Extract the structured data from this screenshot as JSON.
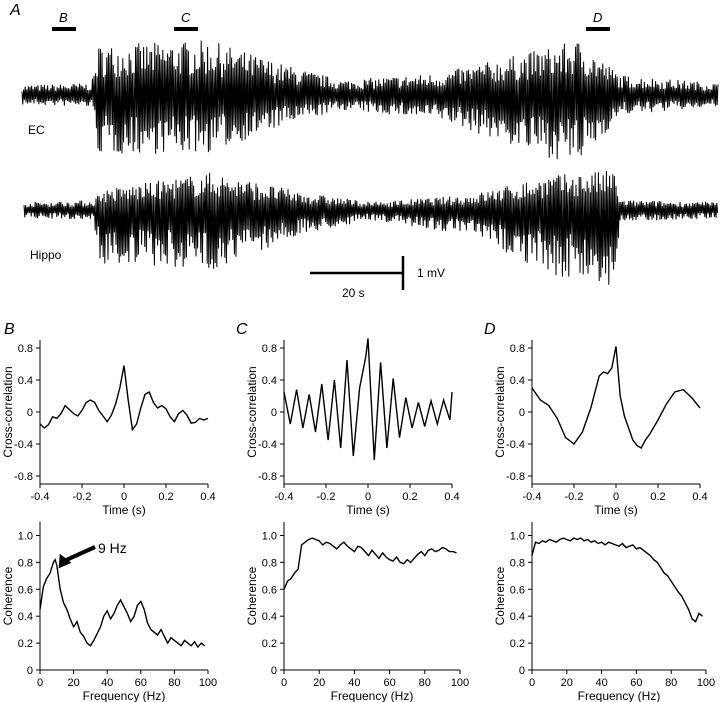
{
  "panel_labels": {
    "a": "A",
    "b": "B",
    "c": "C",
    "d": "D"
  },
  "traces": {
    "epoch_markers": [
      "B",
      "C",
      "D"
    ],
    "channels": [
      "EC",
      "Hippo"
    ],
    "scale_bar": {
      "time_label": "20 s",
      "amplitude_label": "1 mV"
    }
  },
  "colors": {
    "ink": "#000000",
    "background": "#ffffff"
  },
  "chart_data": [
    {
      "type": "line",
      "panel": "B",
      "role": "cross-correlation",
      "xlabel": "Time (s)",
      "ylabel": "Cross-correlation",
      "xlim": [
        -0.4,
        0.4
      ],
      "ylim": [
        -0.9,
        0.9
      ],
      "xticks": [
        "-0.4",
        "-0.2",
        "0",
        "0.2",
        "0.4"
      ],
      "yticks": [
        "-0.8",
        "-0.4",
        "0",
        "0.4",
        "0.8"
      ],
      "x": [
        -0.4,
        -0.38,
        -0.36,
        -0.34,
        -0.32,
        -0.3,
        -0.28,
        -0.26,
        -0.24,
        -0.22,
        -0.2,
        -0.18,
        -0.16,
        -0.14,
        -0.12,
        -0.1,
        -0.08,
        -0.06,
        -0.04,
        -0.02,
        0,
        0.02,
        0.04,
        0.06,
        0.08,
        0.1,
        0.12,
        0.14,
        0.16,
        0.18,
        0.2,
        0.22,
        0.24,
        0.26,
        0.28,
        0.3,
        0.32,
        0.34,
        0.36,
        0.38,
        0.4
      ],
      "y": [
        -0.15,
        -0.2,
        -0.16,
        -0.06,
        -0.08,
        -0.02,
        0.08,
        0.03,
        -0.02,
        -0.05,
        0.02,
        0.12,
        0.15,
        0.12,
        0.02,
        -0.05,
        -0.12,
        -0.04,
        0.1,
        0.3,
        0.58,
        0.15,
        -0.22,
        -0.15,
        0.05,
        0.22,
        0.25,
        0.12,
        0.05,
        0.08,
        0.04,
        -0.06,
        -0.12,
        -0.02,
        0.02,
        -0.04,
        -0.14,
        -0.13,
        -0.08,
        -0.1,
        -0.08
      ]
    },
    {
      "type": "line",
      "panel": "C",
      "role": "cross-correlation",
      "xlabel": "Time (s)",
      "ylabel": "Cross-correlation",
      "xlim": [
        -0.4,
        0.4
      ],
      "ylim": [
        -0.9,
        0.9
      ],
      "xticks": [
        "-0.4",
        "-0.2",
        "0",
        "0.2",
        "0.4"
      ],
      "yticks": [
        "-0.8",
        "-0.4",
        "0",
        "0.4",
        "0.8"
      ],
      "x": [
        -0.4,
        -0.37,
        -0.34,
        -0.31,
        -0.28,
        -0.25,
        -0.22,
        -0.19,
        -0.16,
        -0.13,
        -0.1,
        -0.07,
        -0.04,
        -0.01,
        0.0,
        0.03,
        0.06,
        0.09,
        0.12,
        0.15,
        0.18,
        0.21,
        0.24,
        0.27,
        0.3,
        0.33,
        0.36,
        0.39,
        0.4
      ],
      "y": [
        0.25,
        -0.15,
        0.28,
        -0.2,
        0.22,
        -0.25,
        0.35,
        -0.35,
        0.4,
        -0.45,
        0.65,
        -0.55,
        0.3,
        0.7,
        0.92,
        -0.6,
        0.62,
        -0.45,
        0.42,
        -0.32,
        0.18,
        -0.2,
        0.12,
        -0.18,
        0.14,
        -0.15,
        0.15,
        -0.1,
        0.25
      ]
    },
    {
      "type": "line",
      "panel": "D",
      "role": "cross-correlation",
      "xlabel": "Time (s)",
      "ylabel": "Cross-correlation",
      "xlim": [
        -0.4,
        0.4
      ],
      "ylim": [
        -0.9,
        0.9
      ],
      "xticks": [
        "-0.4",
        "-0.2",
        "0",
        "0.2",
        "0.4"
      ],
      "yticks": [
        "-0.8",
        "-0.4",
        "0",
        "0.4",
        "0.8"
      ],
      "x": [
        -0.4,
        -0.36,
        -0.32,
        -0.28,
        -0.24,
        -0.2,
        -0.16,
        -0.12,
        -0.08,
        -0.06,
        -0.04,
        -0.02,
        0.0,
        0.02,
        0.04,
        0.06,
        0.08,
        0.1,
        0.12,
        0.14,
        0.16,
        0.2,
        0.24,
        0.28,
        0.32,
        0.36,
        0.4
      ],
      "y": [
        0.3,
        0.15,
        0.08,
        -0.08,
        -0.32,
        -0.4,
        -0.25,
        0.05,
        0.45,
        0.5,
        0.48,
        0.55,
        0.82,
        0.2,
        -0.05,
        -0.2,
        -0.35,
        -0.42,
        -0.45,
        -0.35,
        -0.28,
        -0.1,
        0.1,
        0.25,
        0.28,
        0.18,
        0.05
      ]
    },
    {
      "type": "line",
      "panel": "B",
      "role": "coherence",
      "xlabel": "Frequency (Hz)",
      "ylabel": "Coherence",
      "xlim": [
        0,
        100
      ],
      "ylim": [
        0,
        1.1
      ],
      "xticks": [
        "0",
        "20",
        "40",
        "60",
        "80",
        "100"
      ],
      "yticks": [
        "0",
        "0.2",
        "0.4",
        "0.6",
        "0.8",
        "1.0"
      ],
      "annotation": "9 Hz",
      "x": [
        0,
        2,
        4,
        6,
        8,
        9,
        10,
        12,
        14,
        16,
        18,
        20,
        22,
        24,
        26,
        28,
        30,
        32,
        34,
        36,
        38,
        40,
        42,
        44,
        46,
        48,
        50,
        52,
        54,
        56,
        58,
        60,
        62,
        64,
        66,
        68,
        70,
        72,
        74,
        76,
        78,
        80,
        82,
        84,
        86,
        88,
        90,
        92,
        94,
        96,
        98
      ],
      "y": [
        0.45,
        0.62,
        0.68,
        0.72,
        0.8,
        0.82,
        0.78,
        0.6,
        0.5,
        0.45,
        0.38,
        0.32,
        0.36,
        0.28,
        0.25,
        0.2,
        0.18,
        0.22,
        0.27,
        0.32,
        0.4,
        0.44,
        0.38,
        0.42,
        0.48,
        0.52,
        0.47,
        0.42,
        0.36,
        0.4,
        0.48,
        0.51,
        0.45,
        0.35,
        0.3,
        0.28,
        0.26,
        0.3,
        0.25,
        0.2,
        0.24,
        0.22,
        0.2,
        0.18,
        0.22,
        0.2,
        0.18,
        0.21,
        0.17,
        0.2,
        0.18
      ]
    },
    {
      "type": "line",
      "panel": "C",
      "role": "coherence",
      "xlabel": "Frequency (Hz)",
      "ylabel": "Coherence",
      "xlim": [
        0,
        100
      ],
      "ylim": [
        0,
        1.1
      ],
      "xticks": [
        "0",
        "20",
        "40",
        "60",
        "80",
        "100"
      ],
      "yticks": [
        "0",
        "0.2",
        "0.4",
        "0.6",
        "0.8",
        "1.0"
      ],
      "x": [
        0,
        2,
        4,
        6,
        8,
        10,
        12,
        14,
        16,
        18,
        20,
        22,
        24,
        26,
        28,
        30,
        32,
        34,
        36,
        38,
        40,
        42,
        44,
        46,
        48,
        50,
        52,
        54,
        56,
        58,
        60,
        62,
        64,
        66,
        68,
        70,
        72,
        74,
        76,
        78,
        80,
        82,
        84,
        86,
        88,
        90,
        92,
        94,
        96,
        98
      ],
      "y": [
        0.6,
        0.66,
        0.68,
        0.72,
        0.75,
        0.93,
        0.95,
        0.97,
        0.98,
        0.97,
        0.96,
        0.93,
        0.95,
        0.94,
        0.92,
        0.9,
        0.93,
        0.95,
        0.92,
        0.9,
        0.88,
        0.92,
        0.91,
        0.88,
        0.85,
        0.89,
        0.86,
        0.83,
        0.87,
        0.84,
        0.82,
        0.81,
        0.84,
        0.8,
        0.79,
        0.82,
        0.8,
        0.83,
        0.86,
        0.88,
        0.85,
        0.89,
        0.9,
        0.88,
        0.89,
        0.91,
        0.9,
        0.88,
        0.88,
        0.87
      ]
    },
    {
      "type": "line",
      "panel": "D",
      "role": "coherence",
      "xlabel": "Frequency (Hz)",
      "ylabel": "Coherence",
      "xlim": [
        0,
        100
      ],
      "ylim": [
        0,
        1.1
      ],
      "xticks": [
        "0",
        "20",
        "40",
        "60",
        "80",
        "100"
      ],
      "yticks": [
        "0",
        "0.2",
        "0.4",
        "0.6",
        "0.8",
        "1.0"
      ],
      "x": [
        0,
        2,
        4,
        6,
        8,
        10,
        12,
        14,
        16,
        18,
        20,
        22,
        24,
        26,
        28,
        30,
        32,
        34,
        36,
        38,
        40,
        42,
        44,
        46,
        48,
        50,
        52,
        54,
        56,
        58,
        60,
        62,
        64,
        66,
        68,
        70,
        72,
        74,
        76,
        78,
        80,
        82,
        84,
        86,
        88,
        90,
        92,
        94,
        96,
        98
      ],
      "y": [
        0.85,
        0.95,
        0.94,
        0.96,
        0.95,
        0.97,
        0.96,
        0.95,
        0.97,
        0.98,
        0.97,
        0.96,
        0.98,
        0.97,
        0.98,
        0.96,
        0.97,
        0.95,
        0.96,
        0.94,
        0.95,
        0.93,
        0.95,
        0.94,
        0.93,
        0.92,
        0.94,
        0.91,
        0.92,
        0.93,
        0.9,
        0.91,
        0.89,
        0.87,
        0.85,
        0.82,
        0.8,
        0.76,
        0.72,
        0.7,
        0.66,
        0.62,
        0.58,
        0.55,
        0.5,
        0.45,
        0.38,
        0.36,
        0.42,
        0.4
      ]
    }
  ]
}
